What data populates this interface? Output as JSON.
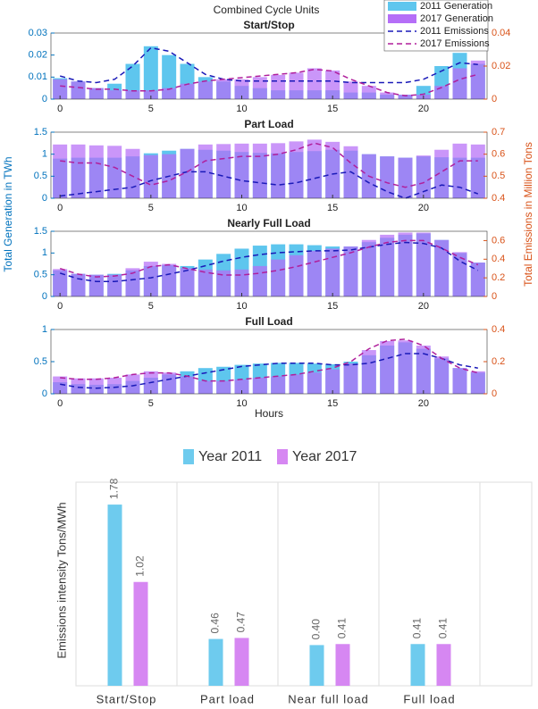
{
  "chart_data": [
    {
      "type": "bar",
      "figure_title": "Combined Cycle Units",
      "title": "Start/Stop",
      "ylabel": "Total Generation in TWh",
      "y2label": "Total Emissions in Million Tons",
      "x": [
        0,
        1,
        2,
        3,
        4,
        5,
        6,
        7,
        8,
        9,
        10,
        11,
        12,
        13,
        14,
        15,
        16,
        17,
        18,
        19,
        20,
        21,
        22,
        23
      ],
      "xlim": [
        -0.5,
        23.5
      ],
      "xticks": [
        0,
        5,
        10,
        15,
        20
      ],
      "ylim": [
        0,
        0.03
      ],
      "yticks": [
        0,
        0.01,
        0.02,
        0.03
      ],
      "y2lim": [
        0,
        0.04
      ],
      "y2ticks": [
        0,
        0.02,
        0.04
      ],
      "series": [
        {
          "name": "2011 Generation",
          "type": "bar",
          "color": "#5ec6ee",
          "values": [
            0.0095,
            0.008,
            0.005,
            0.007,
            0.016,
            0.024,
            0.02,
            0.016,
            0.01,
            0.008,
            0.006,
            0.005,
            0.004,
            0.004,
            0.004,
            0.004,
            0.003,
            0.003,
            0.002,
            0.002,
            0.006,
            0.015,
            0.021,
            0.016
          ]
        },
        {
          "name": "2017 Generation",
          "type": "bar",
          "color": "#b56ef7",
          "values": [
            0.009,
            0.008,
            0.005,
            0.004,
            0.004,
            0.004,
            0.005,
            0.007,
            0.008,
            0.009,
            0.009,
            0.01,
            0.011,
            0.012,
            0.014,
            0.013,
            0.008,
            0.006,
            0.003,
            0.002,
            0.002,
            0.006,
            0.014,
            0.0175
          ]
        },
        {
          "name": "2011 Emissions",
          "type": "line",
          "axis": "y2",
          "color": "#1a1ab8",
          "values": [
            0.014,
            0.011,
            0.01,
            0.012,
            0.02,
            0.031,
            0.029,
            0.022,
            0.015,
            0.012,
            0.011,
            0.011,
            0.011,
            0.011,
            0.011,
            0.011,
            0.01,
            0.01,
            0.01,
            0.01,
            0.012,
            0.017,
            0.022,
            0.021
          ]
        },
        {
          "name": "2017 Emissions",
          "type": "line",
          "axis": "y2",
          "color": "#b01f9c",
          "values": [
            0.008,
            0.007,
            0.006,
            0.006,
            0.005,
            0.005,
            0.006,
            0.009,
            0.011,
            0.012,
            0.013,
            0.014,
            0.015,
            0.016,
            0.018,
            0.017,
            0.012,
            0.008,
            0.004,
            0.002,
            0.003,
            0.007,
            0.012,
            0.015
          ]
        }
      ]
    },
    {
      "type": "bar",
      "title": "Part Load",
      "x": [
        0,
        1,
        2,
        3,
        4,
        5,
        6,
        7,
        8,
        9,
        10,
        11,
        12,
        13,
        14,
        15,
        16,
        17,
        18,
        19,
        20,
        21,
        22,
        23
      ],
      "xlim": [
        -0.5,
        23.5
      ],
      "xticks": [
        0,
        5,
        10,
        15,
        20
      ],
      "ylim": [
        0,
        1.5
      ],
      "yticks": [
        0,
        0.5,
        1,
        1.5
      ],
      "y2lim": [
        0.4,
        0.7
      ],
      "y2ticks": [
        0.4,
        0.5,
        0.6,
        0.7
      ],
      "series": [
        {
          "type": "bar",
          "color": "#5ec6ee",
          "values": [
            0.9,
            0.92,
            0.92,
            0.92,
            0.95,
            1.02,
            1.08,
            1.12,
            1.1,
            1.08,
            1.05,
            1.03,
            1.02,
            1.05,
            1.07,
            1.1,
            1.08,
            1.0,
            0.95,
            0.92,
            0.95,
            0.93,
            0.92,
            0.92
          ]
        },
        {
          "type": "bar",
          "color": "#b56ef7",
          "values": [
            1.22,
            1.22,
            1.2,
            1.19,
            1.12,
            0.98,
            1.0,
            1.12,
            1.22,
            1.23,
            1.24,
            1.24,
            1.25,
            1.29,
            1.33,
            1.28,
            1.18,
            1.0,
            0.95,
            0.92,
            0.97,
            1.1,
            1.24,
            1.22
          ]
        },
        {
          "type": "line",
          "axis": "y2",
          "color": "#1a1ab8",
          "values": [
            0.41,
            0.42,
            0.43,
            0.44,
            0.45,
            0.48,
            0.5,
            0.52,
            0.52,
            0.5,
            0.48,
            0.47,
            0.46,
            0.47,
            0.49,
            0.51,
            0.52,
            0.47,
            0.43,
            0.4,
            0.43,
            0.46,
            0.45,
            0.42
          ]
        },
        {
          "type": "line",
          "axis": "y2",
          "color": "#b01f9c",
          "values": [
            0.57,
            0.56,
            0.56,
            0.54,
            0.5,
            0.46,
            0.48,
            0.52,
            0.57,
            0.58,
            0.59,
            0.59,
            0.6,
            0.62,
            0.65,
            0.63,
            0.56,
            0.5,
            0.47,
            0.45,
            0.47,
            0.52,
            0.57,
            0.57
          ]
        }
      ]
    },
    {
      "type": "bar",
      "title": "Nearly Full Load",
      "x": [
        0,
        1,
        2,
        3,
        4,
        5,
        6,
        7,
        8,
        9,
        10,
        11,
        12,
        13,
        14,
        15,
        16,
        17,
        18,
        19,
        20,
        21,
        22,
        23
      ],
      "xlim": [
        -0.5,
        23.5
      ],
      "xticks": [
        0,
        5,
        10,
        15,
        20
      ],
      "ylim": [
        0,
        1.5
      ],
      "yticks": [
        0,
        0.5,
        1,
        1.5
      ],
      "y2lim": [
        0,
        0.7
      ],
      "y2ticks": [
        0,
        0.2,
        0.4,
        0.6
      ],
      "series": [
        {
          "type": "bar",
          "color": "#5ec6ee",
          "values": [
            0.6,
            0.52,
            0.5,
            0.52,
            0.6,
            0.7,
            0.72,
            0.7,
            0.85,
            0.98,
            1.1,
            1.17,
            1.2,
            1.2,
            1.18,
            1.15,
            1.15,
            1.25,
            1.35,
            1.42,
            1.45,
            1.3,
            1.0,
            0.78
          ]
        },
        {
          "type": "bar",
          "color": "#b56ef7",
          "values": [
            0.63,
            0.52,
            0.5,
            0.5,
            0.65,
            0.8,
            0.75,
            0.65,
            0.62,
            0.6,
            0.62,
            0.7,
            0.85,
            0.95,
            1.05,
            1.1,
            1.15,
            1.3,
            1.42,
            1.47,
            1.47,
            1.3,
            1.02,
            0.78
          ]
        },
        {
          "type": "line",
          "axis": "y2",
          "color": "#1a1ab8",
          "values": [
            0.25,
            0.19,
            0.16,
            0.16,
            0.18,
            0.2,
            0.24,
            0.28,
            0.33,
            0.38,
            0.42,
            0.45,
            0.47,
            0.48,
            0.49,
            0.49,
            0.5,
            0.53,
            0.56,
            0.58,
            0.57,
            0.52,
            0.38,
            0.28
          ]
        },
        {
          "type": "line",
          "axis": "y2",
          "color": "#b01f9c",
          "values": [
            0.3,
            0.24,
            0.21,
            0.22,
            0.25,
            0.32,
            0.34,
            0.3,
            0.26,
            0.23,
            0.23,
            0.25,
            0.28,
            0.32,
            0.37,
            0.42,
            0.47,
            0.53,
            0.58,
            0.6,
            0.6,
            0.52,
            0.42,
            0.34
          ]
        }
      ]
    },
    {
      "type": "bar",
      "title": "Full Load",
      "xlabel": "Hours",
      "x": [
        0,
        1,
        2,
        3,
        4,
        5,
        6,
        7,
        8,
        9,
        10,
        11,
        12,
        13,
        14,
        15,
        16,
        17,
        18,
        19,
        20,
        21,
        22,
        23
      ],
      "xlim": [
        -0.5,
        23.5
      ],
      "xticks": [
        0,
        5,
        10,
        15,
        20
      ],
      "ylim": [
        0,
        1
      ],
      "yticks": [
        0,
        0.5,
        1
      ],
      "y2lim": [
        0,
        0.4
      ],
      "y2ticks": [
        0,
        0.2,
        0.4
      ],
      "series": [
        {
          "type": "bar",
          "color": "#5ec6ee",
          "values": [
            0.18,
            0.15,
            0.14,
            0.15,
            0.2,
            0.25,
            0.3,
            0.35,
            0.4,
            0.42,
            0.45,
            0.47,
            0.48,
            0.48,
            0.47,
            0.46,
            0.5,
            0.6,
            0.75,
            0.8,
            0.7,
            0.55,
            0.4,
            0.33
          ]
        },
        {
          "type": "bar",
          "color": "#b56ef7",
          "values": [
            0.27,
            0.24,
            0.24,
            0.25,
            0.3,
            0.35,
            0.33,
            0.27,
            0.2,
            0.2,
            0.22,
            0.25,
            0.27,
            0.3,
            0.33,
            0.38,
            0.47,
            0.68,
            0.82,
            0.83,
            0.75,
            0.58,
            0.4,
            0.35
          ]
        },
        {
          "type": "line",
          "axis": "y2",
          "color": "#1a1ab8",
          "values": [
            0.06,
            0.04,
            0.035,
            0.04,
            0.05,
            0.07,
            0.09,
            0.11,
            0.13,
            0.15,
            0.17,
            0.18,
            0.19,
            0.19,
            0.19,
            0.18,
            0.18,
            0.19,
            0.22,
            0.25,
            0.25,
            0.22,
            0.18,
            0.16
          ]
        },
        {
          "type": "line",
          "axis": "y2",
          "color": "#b01f9c",
          "values": [
            0.1,
            0.09,
            0.09,
            0.1,
            0.12,
            0.13,
            0.13,
            0.11,
            0.08,
            0.08,
            0.09,
            0.1,
            0.11,
            0.12,
            0.14,
            0.16,
            0.2,
            0.28,
            0.33,
            0.34,
            0.3,
            0.22,
            0.16,
            0.13
          ]
        }
      ]
    },
    {
      "type": "bar",
      "ylabel": "Emissions intensity Tons/MWh",
      "categories": [
        "Start/Stop",
        "Part load",
        "Near full load",
        "Full load"
      ],
      "ylim": [
        0,
        2
      ],
      "series": [
        {
          "name": "Year 2011",
          "color": "#6ecbee",
          "values": [
            1.78,
            0.46,
            0.4,
            0.41
          ],
          "value_labels": [
            "1.78",
            "0.46",
            "0.40",
            "0.41"
          ]
        },
        {
          "name": "Year 2017",
          "color": "#d687f2",
          "values": [
            1.02,
            0.47,
            0.41,
            0.41
          ],
          "value_labels": [
            "1.02",
            "0.47",
            "0.41",
            "0.41"
          ]
        }
      ]
    }
  ]
}
